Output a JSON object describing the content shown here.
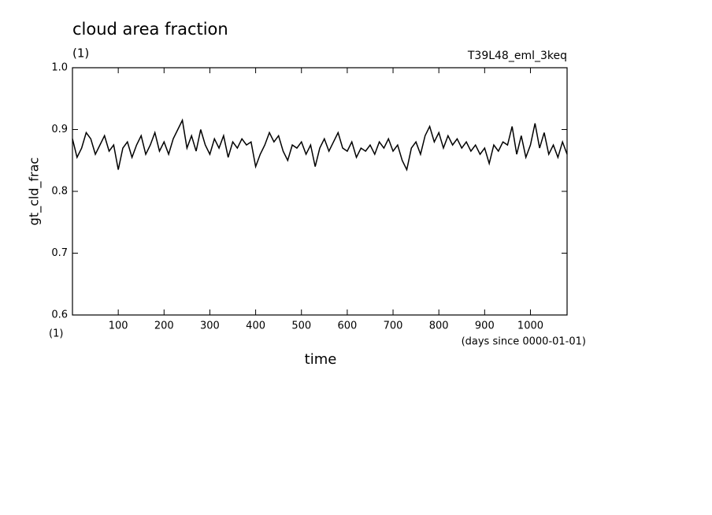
{
  "chart_data": {
    "type": "line",
    "title": "cloud area fraction",
    "subtitle": "(1)",
    "run_label": "T39L48_eml_3keq",
    "y_label": "gt_cld_frac",
    "x_label": "time",
    "x_unit": "(days since 0000-01-01)",
    "y_unit": "(1)",
    "x": [
      0,
      10,
      20,
      30,
      40,
      50,
      60,
      70,
      80,
      90,
      100,
      110,
      120,
      130,
      140,
      150,
      160,
      170,
      180,
      190,
      200,
      210,
      220,
      230,
      240,
      250,
      260,
      270,
      280,
      290,
      300,
      310,
      320,
      330,
      340,
      350,
      360,
      370,
      380,
      390,
      400,
      410,
      420,
      430,
      440,
      450,
      460,
      470,
      480,
      490,
      500,
      510,
      520,
      530,
      540,
      550,
      560,
      570,
      580,
      590,
      600,
      610,
      620,
      630,
      640,
      650,
      660,
      670,
      680,
      690,
      700,
      710,
      720,
      730,
      740,
      750,
      760,
      770,
      780,
      790,
      800,
      810,
      820,
      830,
      840,
      850,
      860,
      870,
      880,
      890,
      900,
      910,
      920,
      930,
      940,
      950,
      960,
      970,
      980,
      990,
      1000,
      1010,
      1020,
      1030,
      1040,
      1050,
      1060,
      1070,
      1080
    ],
    "series": [
      {
        "name": "gt_cld_frac",
        "color": "#000000",
        "values": [
          0.885,
          0.855,
          0.87,
          0.895,
          0.885,
          0.86,
          0.875,
          0.89,
          0.865,
          0.875,
          0.835,
          0.87,
          0.88,
          0.855,
          0.875,
          0.89,
          0.86,
          0.875,
          0.895,
          0.865,
          0.88,
          0.86,
          0.885,
          0.9,
          0.915,
          0.87,
          0.89,
          0.865,
          0.9,
          0.875,
          0.86,
          0.885,
          0.87,
          0.89,
          0.855,
          0.88,
          0.87,
          0.885,
          0.875,
          0.88,
          0.84,
          0.86,
          0.875,
          0.895,
          0.88,
          0.89,
          0.865,
          0.85,
          0.875,
          0.87,
          0.88,
          0.86,
          0.875,
          0.84,
          0.87,
          0.885,
          0.865,
          0.88,
          0.895,
          0.87,
          0.865,
          0.88,
          0.855,
          0.87,
          0.865,
          0.875,
          0.86,
          0.88,
          0.87,
          0.885,
          0.865,
          0.875,
          0.85,
          0.835,
          0.87,
          0.88,
          0.86,
          0.89,
          0.905,
          0.88,
          0.895,
          0.87,
          0.89,
          0.875,
          0.885,
          0.87,
          0.88,
          0.865,
          0.875,
          0.86,
          0.87,
          0.845,
          0.875,
          0.865,
          0.88,
          0.875,
          0.905,
          0.86,
          0.89,
          0.855,
          0.875,
          0.91,
          0.87,
          0.895,
          0.86,
          0.875,
          0.855,
          0.88,
          0.86
        ]
      }
    ],
    "xlim": [
      0,
      1080
    ],
    "ylim": [
      0.6,
      1.0
    ],
    "xticks": [
      100,
      200,
      300,
      400,
      500,
      600,
      700,
      800,
      900,
      1000
    ],
    "yticks": [
      0.6,
      0.7,
      0.8,
      0.9,
      {
        "value": 1.0,
        "label": "1.0"
      }
    ],
    "grid": false
  }
}
